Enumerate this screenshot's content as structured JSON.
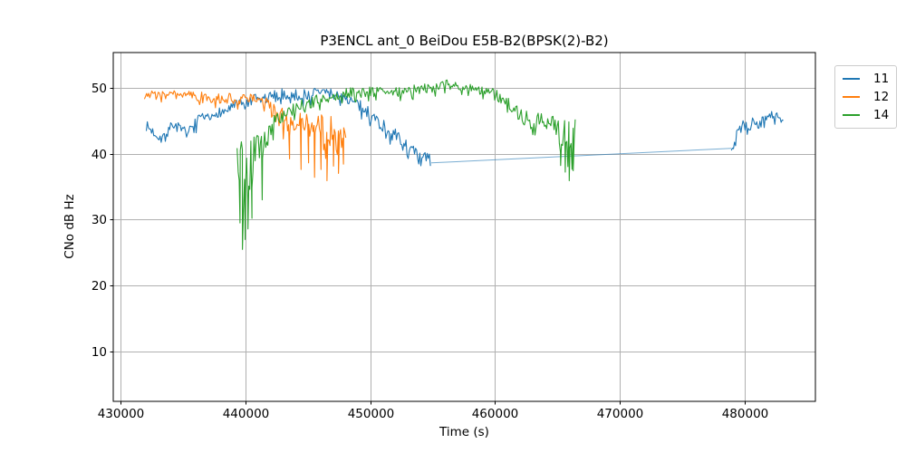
{
  "chart_data": {
    "type": "line",
    "title": "P3ENCL ant_0 BeiDou E5B-B2(BPSK(2)-B2)",
    "xlabel": "Time (s)",
    "ylabel": "CNo dB Hz",
    "axes": {
      "xlim": [
        429400,
        485700
      ],
      "ylim": [
        2.5,
        55.3
      ],
      "xticks": [
        430000,
        440000,
        450000,
        460000,
        470000,
        480000
      ],
      "yticks": [
        10,
        20,
        30,
        40,
        50
      ],
      "grid": true,
      "grid_color": "#b0b0b0",
      "spine_color": "#000000"
    },
    "legend": {
      "position": "outside-upper-right",
      "items": [
        {
          "label": "11",
          "color": "#1f77b4"
        },
        {
          "label": "12",
          "color": "#ff7f0e"
        },
        {
          "label": "14",
          "color": "#2ca02c"
        }
      ]
    },
    "series": [
      {
        "name": "11",
        "color": "#1f77b4",
        "seed": 7,
        "segments": [
          {
            "noisy": true,
            "keypoints": [
              [
                432050,
                44.2,
                0.8
              ],
              [
                432700,
                43.1,
                0.8
              ],
              [
                433300,
                42.4,
                0.9
              ],
              [
                433900,
                43.7,
                0.8
              ],
              [
                434300,
                44.6,
                0.9
              ],
              [
                434900,
                43.3,
                0.8
              ],
              [
                435500,
                43.3,
                0.8
              ],
              [
                436100,
                44.8,
                0.9
              ],
              [
                436700,
                45.4,
                0.8
              ],
              [
                437200,
                45.1,
                0.8
              ],
              [
                437700,
                46.3,
                0.8
              ],
              [
                438300,
                46.3,
                0.8
              ],
              [
                438900,
                47.1,
                0.8
              ],
              [
                439500,
                47.4,
                0.9
              ],
              [
                440100,
                47.4,
                1.0
              ],
              [
                440700,
                48.1,
                0.9
              ],
              [
                441400,
                48.2,
                0.9
              ],
              [
                442100,
                48.6,
                0.9
              ],
              [
                443000,
                49.0,
                0.9
              ],
              [
                444000,
                48.8,
                0.9
              ],
              [
                445000,
                49.0,
                0.9
              ],
              [
                446000,
                49.4,
                0.9
              ],
              [
                447000,
                49.0,
                0.8
              ],
              [
                448000,
                48.5,
                0.8
              ],
              [
                448800,
                47.6,
                0.9
              ],
              [
                449600,
                46.6,
                1.0
              ],
              [
                450400,
                45.3,
                1.0
              ],
              [
                451200,
                43.9,
                1.1
              ],
              [
                452000,
                42.7,
                1.1
              ],
              [
                452800,
                41.2,
                1.2
              ],
              [
                453600,
                39.8,
                1.3
              ],
              [
                454100,
                38.5,
                1.4
              ],
              [
                454500,
                39.7,
                1.2
              ],
              [
                454900,
                38.6,
                0.9
              ]
            ],
            "spikes": [
              [
                454868,
                23.0
              ]
            ]
          },
          {
            "noisy": false,
            "keypoints": [
              [
                454900,
                38.6
              ],
              [
                478960,
                40.8
              ]
            ]
          },
          {
            "noisy": true,
            "keypoints": [
              [
                478960,
                40.8,
                0.6
              ],
              [
                479150,
                41.0,
                1.3
              ],
              [
                479400,
                42.8,
                1.0
              ],
              [
                479700,
                43.8,
                0.9
              ],
              [
                480000,
                44.3,
                0.9
              ],
              [
                480300,
                43.6,
                0.9
              ],
              [
                480700,
                44.8,
                0.8
              ],
              [
                481200,
                44.5,
                0.8
              ],
              [
                481700,
                45.2,
                0.8
              ],
              [
                482100,
                45.8,
                0.8
              ],
              [
                482400,
                45.4,
                0.7
              ],
              [
                482800,
                45.6,
                0.7
              ],
              [
                483150,
                44.8,
                0.6
              ]
            ],
            "spikes": []
          }
        ]
      },
      {
        "name": "12",
        "color": "#ff7f0e",
        "seed": 3,
        "segments": [
          {
            "noisy": true,
            "keypoints": [
              [
                431900,
                49.2,
                0.6
              ],
              [
                432600,
                48.9,
                0.7
              ],
              [
                433600,
                48.9,
                0.7
              ],
              [
                434600,
                49.1,
                0.6
              ],
              [
                435600,
                48.7,
                0.7
              ],
              [
                436600,
                48.6,
                0.7
              ],
              [
                437600,
                48.2,
                0.8
              ],
              [
                438600,
                48.4,
                0.8
              ],
              [
                439600,
                48.3,
                0.8
              ],
              [
                440400,
                48.4,
                0.8
              ],
              [
                441100,
                47.8,
                1.0
              ],
              [
                441800,
                47.2,
                1.3
              ],
              [
                442400,
                46.2,
                1.5
              ],
              [
                443000,
                45.1,
                1.8
              ],
              [
                443500,
                44.2,
                2.0
              ],
              [
                444000,
                45.4,
                1.8
              ],
              [
                444500,
                43.8,
                2.3
              ],
              [
                445000,
                45.2,
                1.8
              ],
              [
                445500,
                42.9,
                2.5
              ],
              [
                446000,
                44.8,
                2.0
              ],
              [
                446500,
                42.4,
                2.5
              ],
              [
                447000,
                44.2,
                2.0
              ],
              [
                447400,
                41.9,
                2.3
              ],
              [
                447800,
                42.9,
                2.0
              ],
              [
                448100,
                41.6,
                1.5
              ]
            ],
            "spikes": [
              [
                443540,
                39.2
              ],
              [
                444460,
                37.6
              ],
              [
                445060,
                38.6
              ],
              [
                445540,
                36.4
              ],
              [
                446060,
                37.6
              ],
              [
                446540,
                35.9
              ],
              [
                447060,
                38.1
              ],
              [
                447460,
                37.0
              ],
              [
                447860,
                38.4
              ]
            ]
          }
        ]
      },
      {
        "name": "14",
        "color": "#2ca02c",
        "seed": 5,
        "segments": [
          {
            "noisy": true,
            "keypoints": [
              [
                439330,
                39.5,
                3.5
              ],
              [
                439700,
                38.5,
                4.0
              ],
              [
                440100,
                37.3,
                4.5
              ],
              [
                440500,
                38.0,
                4.0
              ],
              [
                441000,
                41.0,
                2.6
              ],
              [
                441500,
                41.6,
                2.0
              ],
              [
                442100,
                44.3,
                1.4
              ],
              [
                442700,
                45.2,
                1.1
              ],
              [
                443300,
                46.2,
                1.0
              ],
              [
                444100,
                47.0,
                0.9
              ],
              [
                445000,
                47.6,
                0.9
              ],
              [
                446000,
                48.2,
                0.9
              ],
              [
                447000,
                48.7,
                0.8
              ],
              [
                448000,
                49.1,
                0.8
              ],
              [
                449000,
                49.3,
                0.8
              ],
              [
                450000,
                49.3,
                0.8
              ],
              [
                451000,
                49.6,
                0.8
              ],
              [
                452000,
                49.4,
                0.8
              ],
              [
                453000,
                49.6,
                0.8
              ],
              [
                454000,
                49.8,
                0.8
              ],
              [
                455000,
                50.0,
                0.8
              ],
              [
                455800,
                50.4,
                0.7
              ],
              [
                456400,
                50.6,
                0.7
              ],
              [
                457000,
                50.2,
                0.7
              ],
              [
                458000,
                49.9,
                0.7
              ],
              [
                459000,
                49.6,
                0.8
              ],
              [
                460000,
                48.9,
                0.9
              ],
              [
                460800,
                48.2,
                1.0
              ],
              [
                461500,
                47.0,
                1.2
              ],
              [
                462000,
                46.0,
                1.3
              ],
              [
                462500,
                45.3,
                1.3
              ],
              [
                463000,
                44.8,
                1.2
              ],
              [
                463500,
                45.3,
                1.1
              ],
              [
                464000,
                44.7,
                1.2
              ],
              [
                464500,
                45.0,
                1.2
              ],
              [
                465000,
                44.2,
                1.5
              ],
              [
                465400,
                43.2,
                2.0
              ],
              [
                465800,
                42.6,
                2.6
              ],
              [
                466100,
                42.1,
                3.0
              ],
              [
                466500,
                43.2,
                2.0
              ]
            ],
            "spikes": [
              [
                439560,
                29.5
              ],
              [
                439760,
                25.5
              ],
              [
                439980,
                27.0
              ],
              [
                440200,
                28.6
              ],
              [
                440520,
                30.2
              ],
              [
                441340,
                33.0
              ],
              [
                465270,
                38.2
              ],
              [
                465640,
                37.2
              ],
              [
                465960,
                35.9
              ],
              [
                466280,
                37.4
              ]
            ]
          }
        ]
      }
    ]
  }
}
